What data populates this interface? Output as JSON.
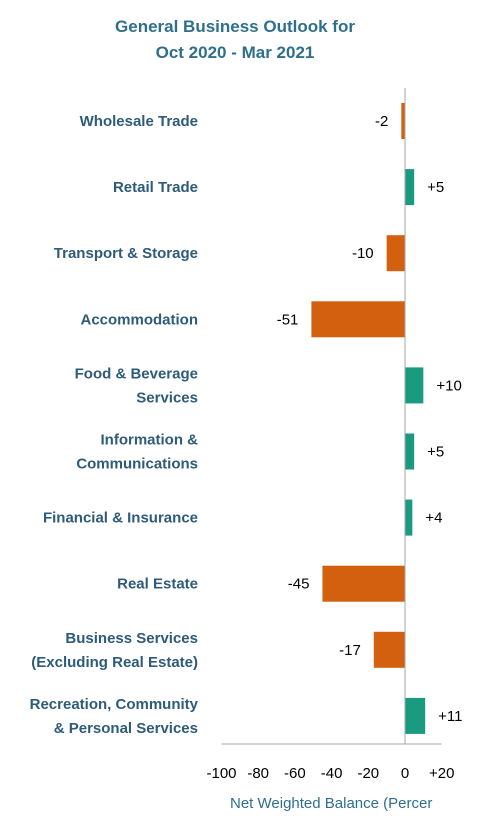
{
  "chart_data": {
    "type": "bar",
    "orientation": "horizontal",
    "title": [
      "General Business Outlook for",
      "Oct 2020 - Mar 2021"
    ],
    "categories": [
      [
        "Wholesale Trade"
      ],
      [
        "Retail Trade"
      ],
      [
        "Transport & Storage"
      ],
      [
        "Accommodation"
      ],
      [
        "Food & Beverage",
        "Services"
      ],
      [
        "Information &",
        "Communications"
      ],
      [
        "Financial & Insurance"
      ],
      [
        "Real Estate"
      ],
      [
        "Business Services",
        "(Excluding Real Estate)"
      ],
      [
        "Recreation, Community",
        "& Personal Services"
      ]
    ],
    "values": [
      -2,
      5,
      -10,
      -51,
      10,
      5,
      4,
      -45,
      -17,
      11
    ],
    "value_labels": [
      "-2",
      "+5",
      "-10",
      "-51",
      "+10",
      "+5",
      "+4",
      "-45",
      "-17",
      "+11"
    ],
    "xlim": [
      -100,
      20
    ],
    "xticks": [
      -100,
      -80,
      -60,
      -40,
      -20,
      0,
      20
    ],
    "xtick_labels": [
      "-100",
      "-80",
      "-60",
      "-40",
      "-20",
      "0",
      "+20"
    ],
    "xlabel": "Net Weighted Balance (Percer",
    "grid": false,
    "colors": {
      "positive": "#1A9A7E",
      "negative": "#D2600E",
      "title": "#2E6F8E",
      "category": "#2E5B7A",
      "axis": "#A6A6A6"
    }
  }
}
